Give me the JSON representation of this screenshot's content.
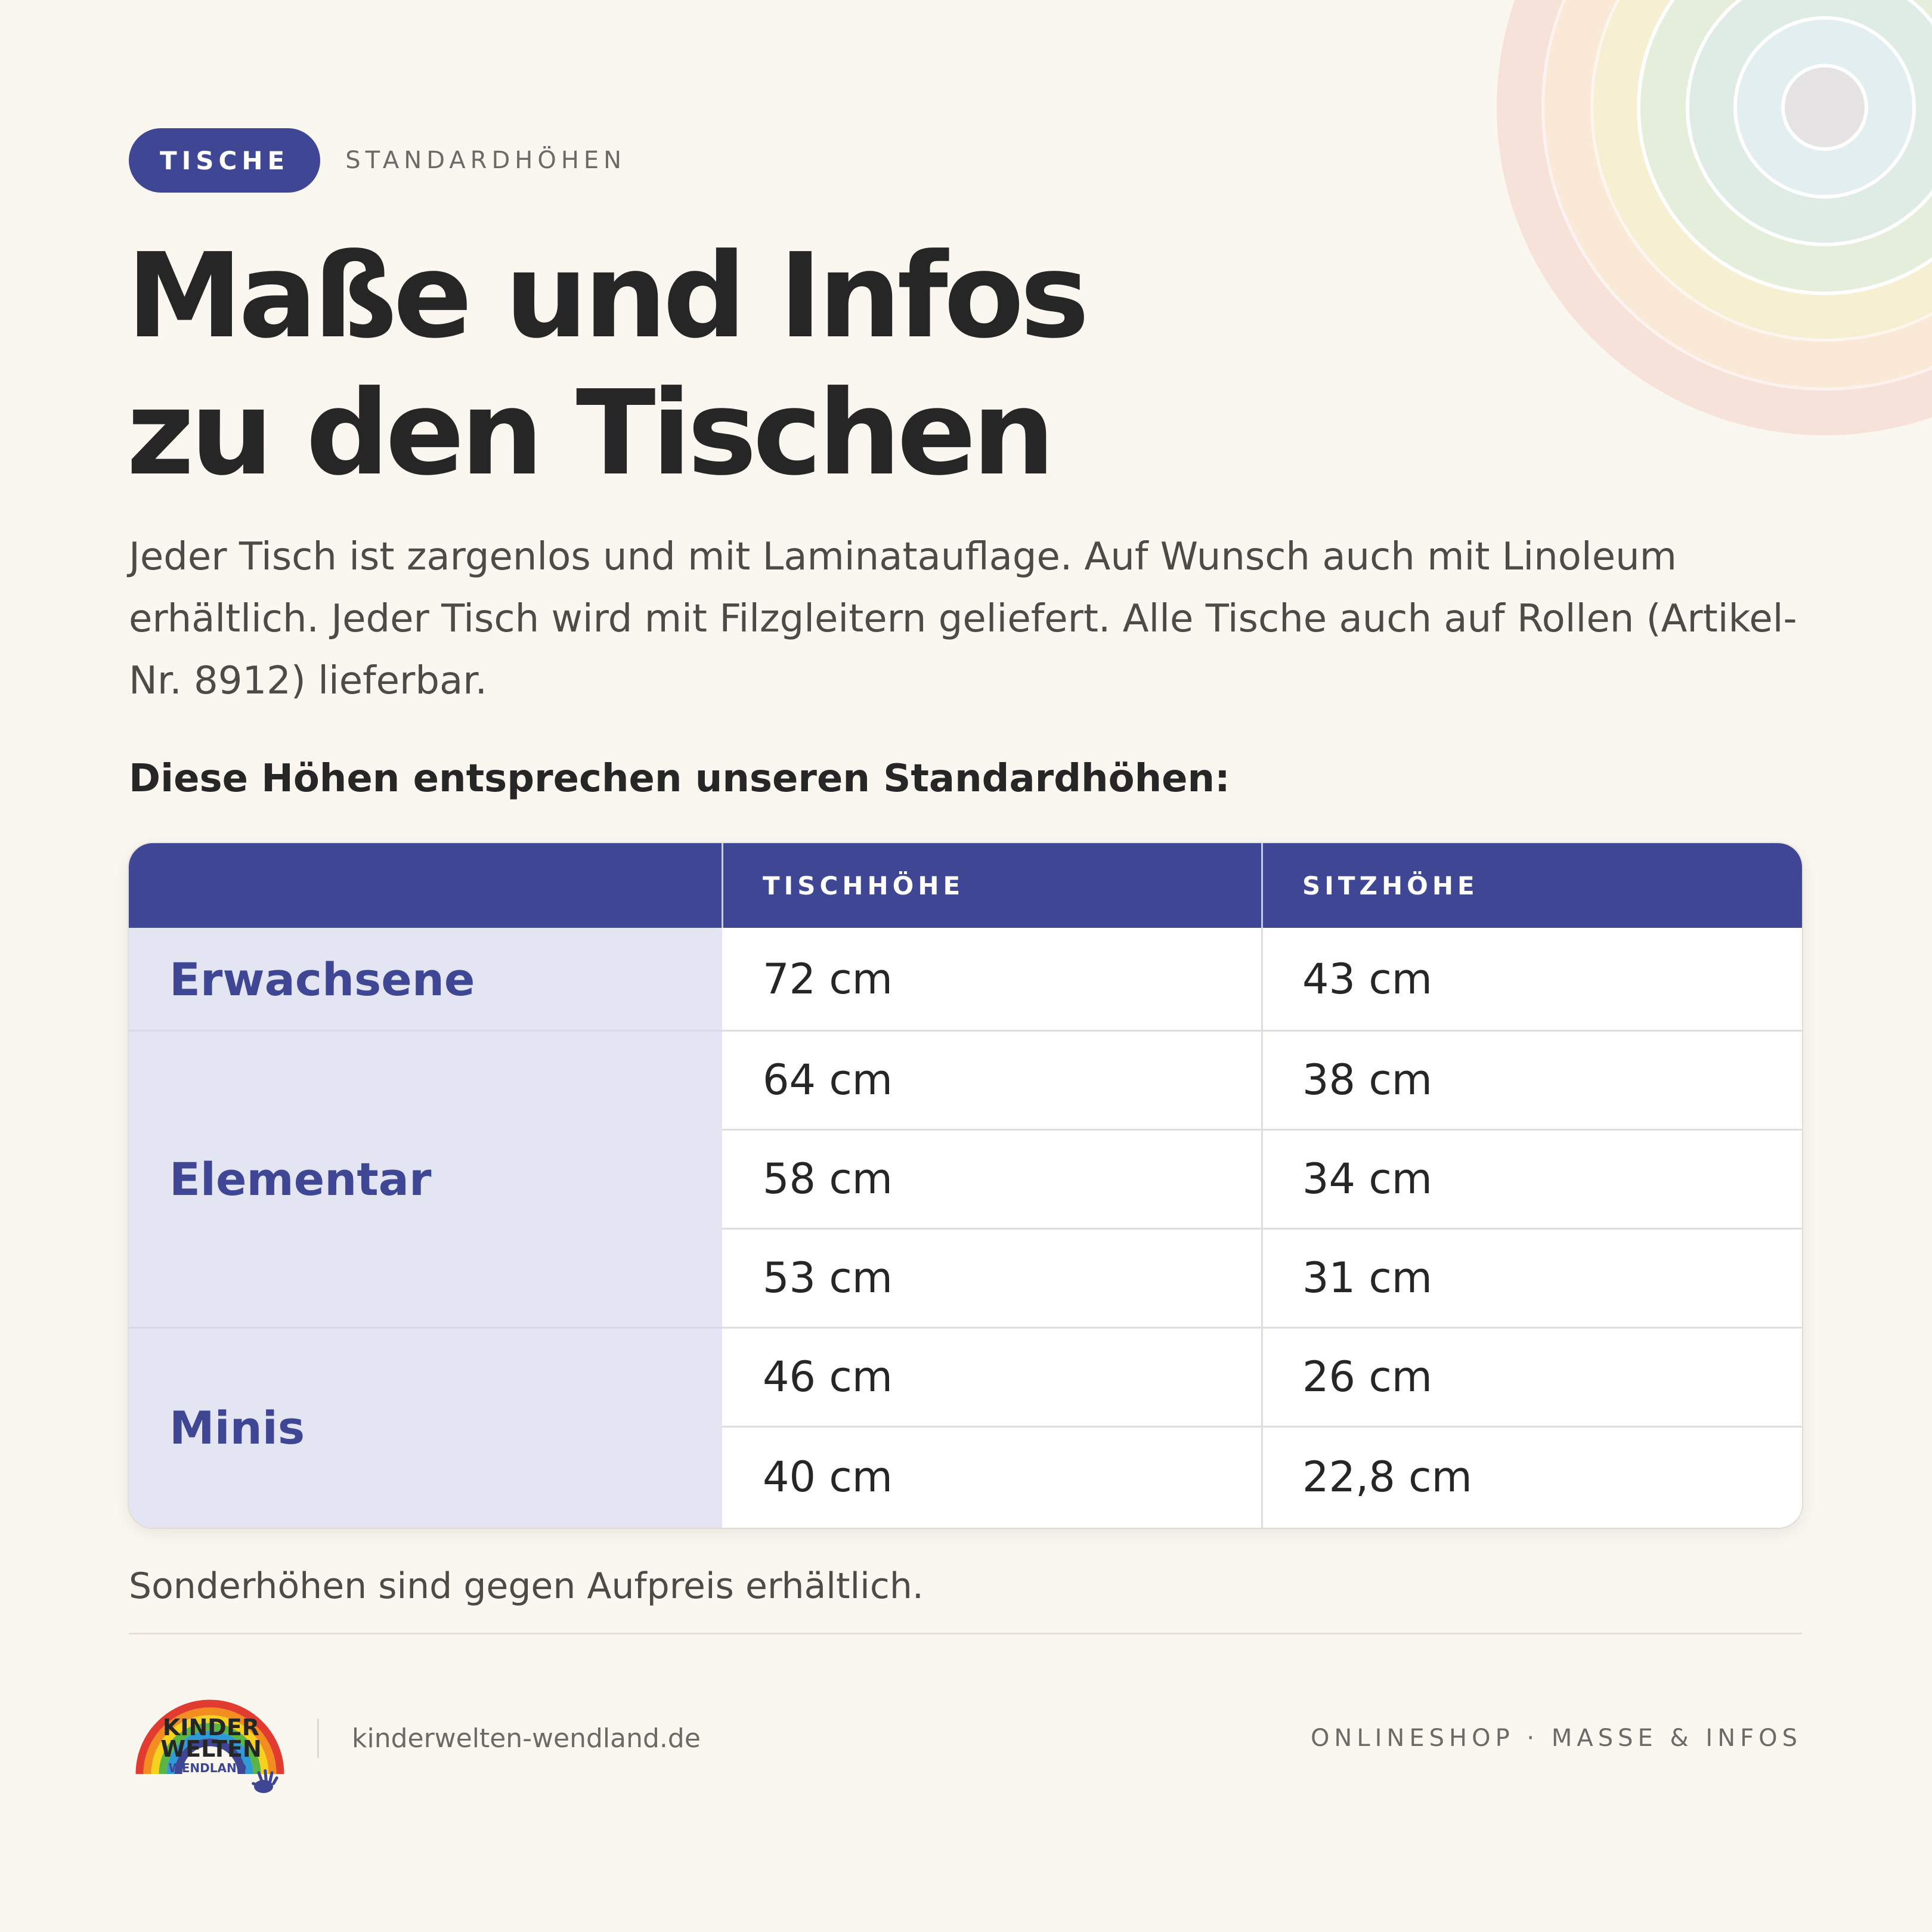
{
  "header": {
    "pill_label": "TISCHE",
    "kicker": "STANDARDHÖHEN"
  },
  "title": {
    "line1": "Maße und Infos",
    "line2": "zu den Tischen"
  },
  "intro": "Jeder Tisch ist zargenlos und mit Laminatauflage. Auf Wunsch auch mit Linoleum erhältlich. Jeder Tisch wird mit Filzgleitern geliefert. Alle Tische auch auf Rollen (Artikel-Nr. 8912) lieferbar.",
  "subheading": "Diese Höhen entsprechen unseren Standardhöhen:",
  "table": {
    "headers": [
      "",
      "TISCHHÖHE",
      "SITZHÖHE"
    ],
    "groups": [
      "Erwachsene",
      "Elementar",
      "Minis"
    ],
    "rows": [
      {
        "tisch": "72 cm",
        "sitz": "43 cm"
      },
      {
        "tisch": "64 cm",
        "sitz": "38 cm"
      },
      {
        "tisch": "58 cm",
        "sitz": "34 cm"
      },
      {
        "tisch": "53 cm",
        "sitz": "31 cm"
      },
      {
        "tisch": "46 cm",
        "sitz": "26 cm"
      },
      {
        "tisch": "40 cm",
        "sitz": "22,8 cm"
      }
    ]
  },
  "footnote": "Sonderhöhen sind gegen Aufpreis erhältlich.",
  "footer": {
    "logo_text": {
      "line1": "KINDER",
      "line2": "WELTEN",
      "line3": "WENDLAND"
    },
    "site": "kinderwelten-wendland.de",
    "right": "ONLINESHOP · MASSE & INFOS"
  },
  "colors": {
    "background": "#faf7f1",
    "accent": "#3f4795",
    "group_bg": "#e4e5f2",
    "text_dark": "#262626",
    "text_muted": "#6d6a66"
  },
  "icons": [
    "rainbow-rings-decoration",
    "rainbow-logo-icon",
    "hand-icon"
  ]
}
